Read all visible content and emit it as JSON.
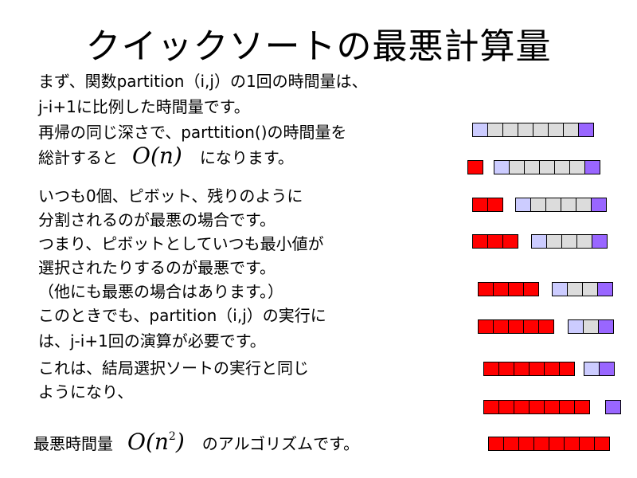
{
  "title": "クイックソートの最悪計算量",
  "paragraph1": {
    "line1": "まず、関数partition（i,j）の1回の時間量は、",
    "line2": "j-i+1に比例した時間量です。",
    "line3": "再帰の同じ深さで、parttition()の時間量を",
    "line4_before": "総計すると",
    "line4_math": "O(n)",
    "line4_after": "になります。"
  },
  "paragraph2": {
    "line1": "いつも0個、ピボット、残りのように",
    "line2": "分割されるのが最悪の場合です。",
    "line3": "つまり、ピボットとしていつも最小値が",
    "line4": "選択されたりするのが最悪です。",
    "line5": "（他にも最悪の場合はあります。）",
    "line6": "このときでも、partition（i,j）の実行に",
    "line7": "は、j-i+1回の演算が必要です。",
    "line8": "これは、結局選択ソートの実行と同じ",
    "line9": "ようになり、"
  },
  "conclusion": {
    "before": "最悪時間量",
    "math_base": "O(n",
    "math_exp": "2",
    "math_close": ")",
    "after": "のアルゴリズムです。"
  },
  "colors": {
    "sorted": "#ff0000",
    "first": "#ccccff",
    "middle": "#dcdcdc",
    "last": "#9966ff"
  },
  "diagram_rows": [
    {
      "sorted": 0,
      "rest": [
        "first",
        "middle",
        "middle",
        "middle",
        "middle",
        "middle",
        "middle",
        "last"
      ]
    },
    {
      "sorted": 1,
      "rest": [
        "first",
        "middle",
        "middle",
        "middle",
        "middle",
        "middle",
        "last"
      ]
    },
    {
      "sorted": 2,
      "rest": [
        "first",
        "middle",
        "middle",
        "middle",
        "middle",
        "last"
      ]
    },
    {
      "sorted": 3,
      "rest": [
        "first",
        "middle",
        "middle",
        "middle",
        "last"
      ]
    },
    {
      "sorted": 4,
      "rest": [
        "first",
        "middle",
        "middle",
        "last"
      ]
    },
    {
      "sorted": 5,
      "rest": [
        "first",
        "middle",
        "last"
      ]
    },
    {
      "sorted": 6,
      "rest": [
        "first",
        "last"
      ]
    },
    {
      "sorted": 7,
      "rest": [
        "last"
      ]
    },
    {
      "sorted": 8,
      "rest": []
    }
  ]
}
